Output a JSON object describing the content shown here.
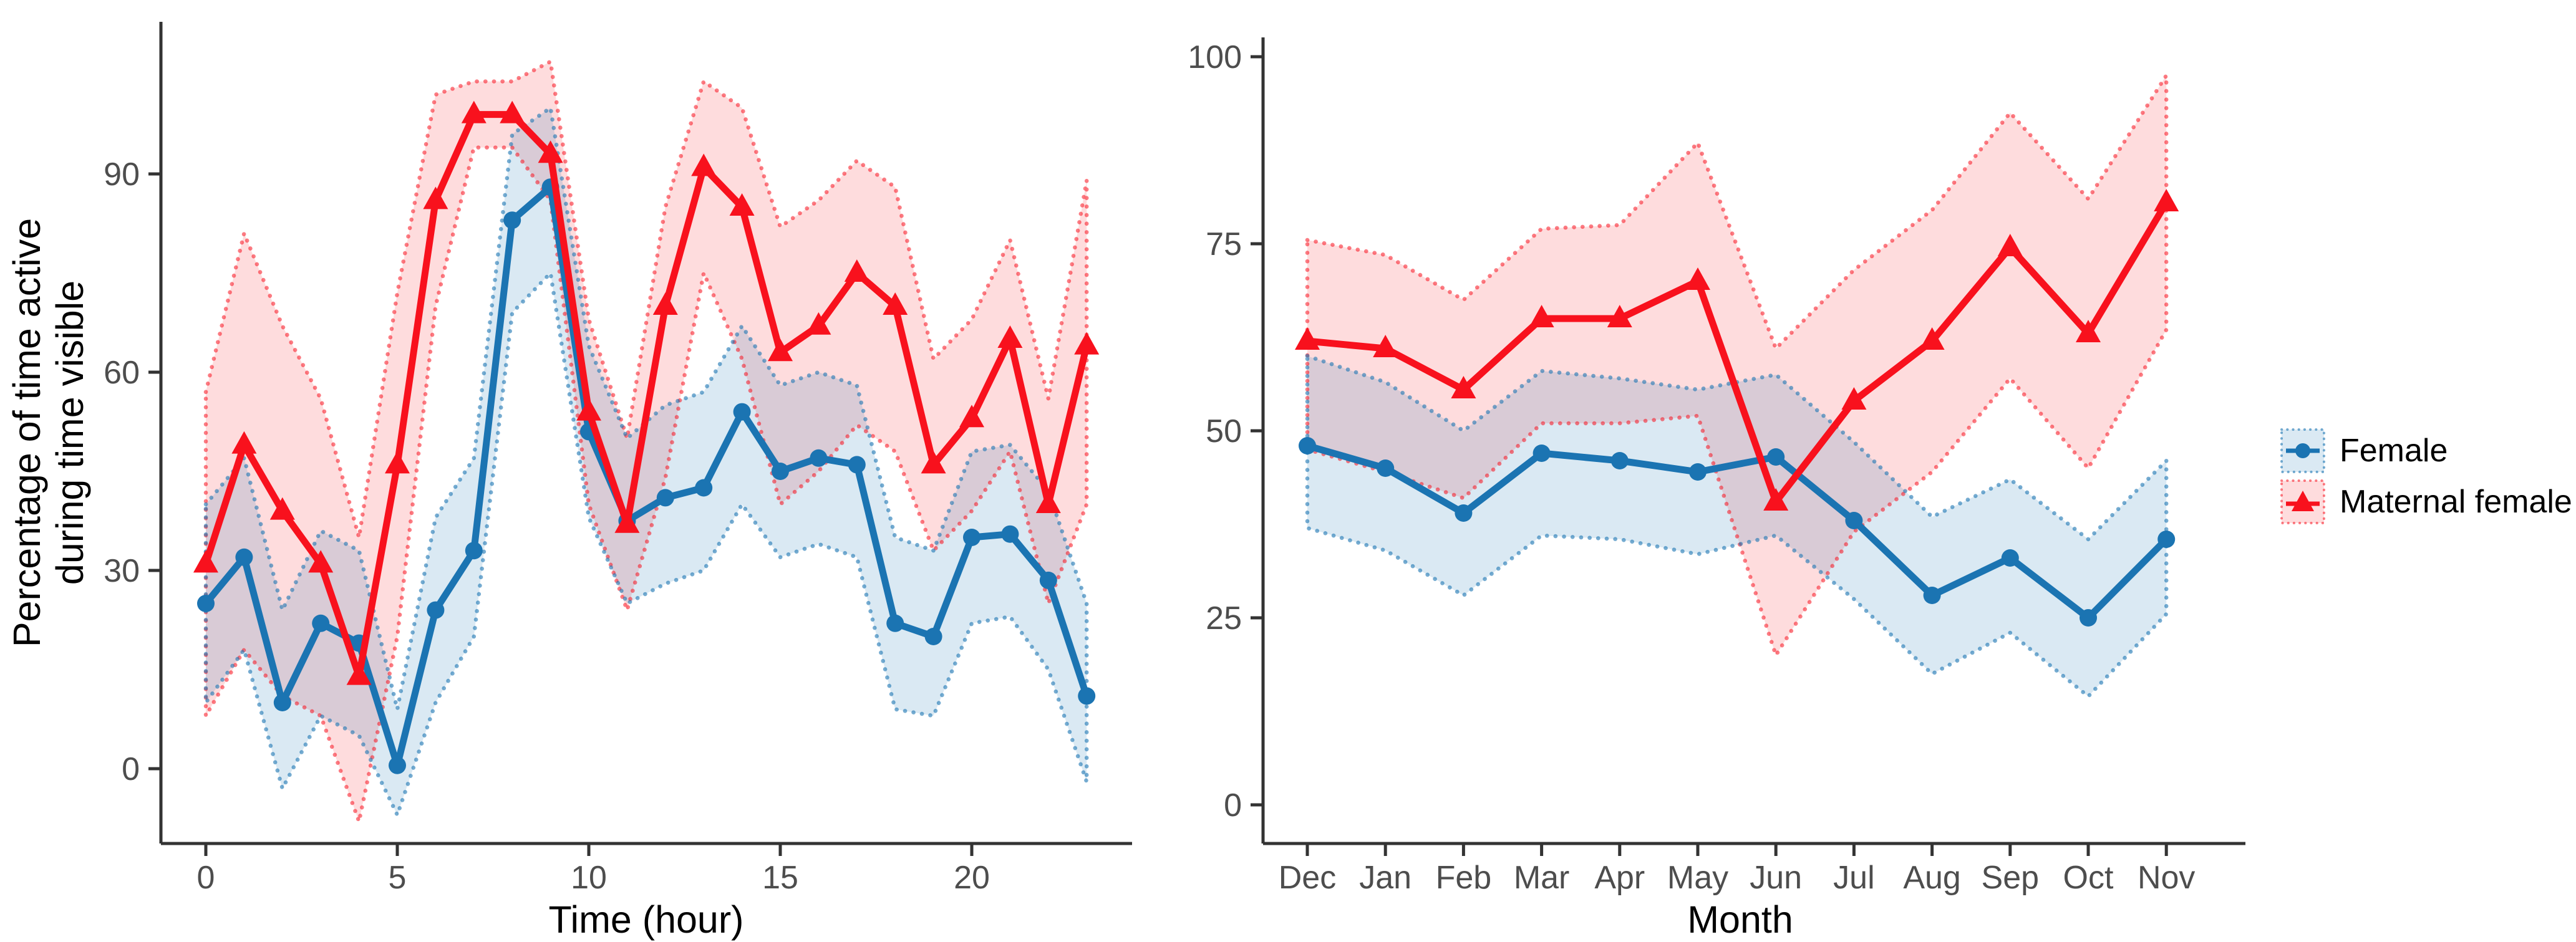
{
  "colors": {
    "female": "#1b74b2",
    "maternal": "#f8111d",
    "female_ribbon": "rgba(27,116,178,0.16)",
    "maternal_ribbon": "rgba(248,17,29,0.15)",
    "female_edge": "rgba(27,116,178,0.60)",
    "maternal_edge": "rgba(248,17,29,0.55)",
    "axis": "#333333",
    "tick_label": "#4d4d4d"
  },
  "legend": {
    "items": [
      {
        "label": "Female",
        "marker": "circle"
      },
      {
        "label": "Maternal female",
        "marker": "triangle"
      }
    ]
  },
  "chart_data": [
    {
      "id": "hourly",
      "type": "line",
      "title": "",
      "xlabel": "Time (hour)",
      "ylabel": "Percentage of time active during time visible",
      "ylabel_line1": "Percentage of time active",
      "ylabel_line2": "during time visible",
      "x": [
        0,
        1,
        2,
        3,
        4,
        5,
        6,
        7,
        8,
        9,
        10,
        11,
        12,
        13,
        14,
        15,
        16,
        17,
        18,
        19,
        20,
        21,
        22,
        23
      ],
      "x_ticks": [
        0,
        5,
        10,
        15,
        20
      ],
      "y_ticks": [
        0,
        30,
        60,
        90
      ],
      "ylim": [
        -11,
        113
      ],
      "legend_position": "right",
      "grid": false,
      "series": [
        {
          "name": "Female",
          "marker": "circle",
          "color_key": "female",
          "values": [
            25,
            32,
            10,
            22,
            19,
            0.5,
            24,
            33,
            83,
            88,
            51,
            37.5,
            41,
            42.5,
            54,
            45,
            47,
            46,
            22,
            20,
            35,
            35.5,
            28.5,
            11
          ],
          "lower": [
            10,
            18,
            -3,
            8,
            5,
            -7,
            10,
            20,
            69,
            75,
            38,
            25,
            28,
            30,
            40,
            32,
            34,
            32,
            9,
            8,
            22,
            23,
            15,
            -2
          ],
          "upper": [
            40,
            47,
            24,
            36,
            33,
            9,
            38,
            47,
            96,
            100,
            64,
            50,
            55,
            57,
            67,
            58,
            60,
            58,
            35,
            33,
            48,
            49,
            42,
            25
          ]
        },
        {
          "name": "Maternal female",
          "marker": "triangle",
          "color_key": "maternal",
          "values": [
            31,
            49,
            39,
            31,
            14,
            46,
            86,
            99,
            99,
            93,
            54,
            37,
            70,
            91,
            85,
            63,
            67,
            75,
            70,
            46,
            53,
            65,
            40,
            64
          ],
          "lower": [
            8,
            18,
            11,
            8,
            -8,
            20,
            70,
            94,
            94,
            86,
            40,
            24,
            44,
            75,
            62,
            40,
            45,
            52,
            48,
            33,
            39,
            48,
            25,
            40
          ],
          "upper": [
            57,
            81,
            67,
            56,
            35,
            72,
            102,
            104,
            104,
            107,
            68,
            50,
            85,
            104,
            100,
            82,
            86,
            92,
            88,
            62,
            68,
            80,
            56,
            89
          ]
        }
      ]
    },
    {
      "id": "monthly",
      "type": "line",
      "title": "",
      "xlabel": "Month",
      "ylabel": "",
      "categories": [
        "Dec",
        "Jan",
        "Feb",
        "Mar",
        "Apr",
        "May",
        "Jun",
        "Jul",
        "Aug",
        "Sep",
        "Oct",
        "Nov"
      ],
      "y_ticks": [
        0,
        25,
        50,
        75,
        100
      ],
      "ylim": [
        -5,
        103
      ],
      "grid": false,
      "series": [
        {
          "name": "Female",
          "marker": "circle",
          "color_key": "female",
          "values": [
            48,
            45,
            39,
            47,
            46,
            44.5,
            46.5,
            38,
            28,
            33,
            25,
            35.5
          ],
          "lower": [
            37,
            34,
            28,
            36,
            35.5,
            33.5,
            36,
            27.5,
            17.5,
            23,
            14.5,
            25.5
          ],
          "upper": [
            60,
            56.5,
            50,
            58,
            57,
            55.5,
            57.5,
            48.5,
            38.5,
            43.5,
            35.5,
            46
          ]
        },
        {
          "name": "Maternal female",
          "marker": "triangle",
          "color_key": "maternal",
          "values": [
            62,
            61,
            55.5,
            65,
            65,
            70,
            40.5,
            54,
            62,
            74.5,
            63,
            80.5
          ],
          "lower": [
            47.5,
            44.5,
            41,
            51,
            51,
            52,
            20,
            36.5,
            44.5,
            57,
            45,
            63.5
          ],
          "upper": [
            75.5,
            73.5,
            67.5,
            77,
            77.5,
            88.5,
            61,
            71.5,
            79.5,
            92.5,
            81,
            97.5
          ]
        }
      ]
    }
  ]
}
